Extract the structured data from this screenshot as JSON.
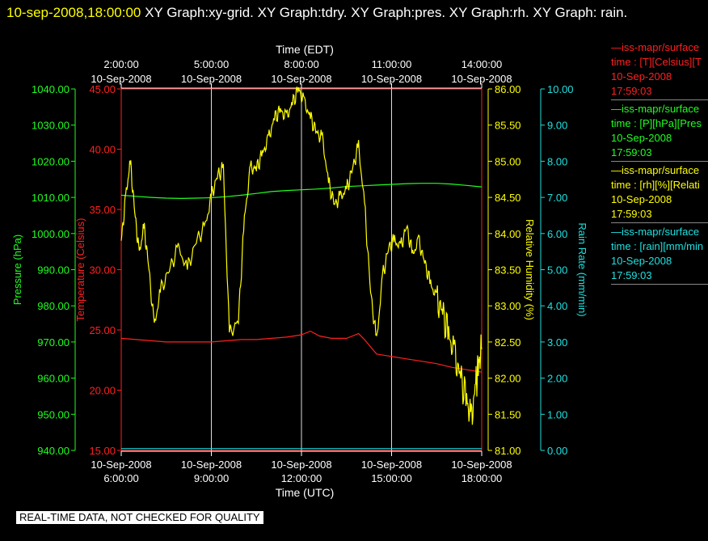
{
  "header": {
    "timestamp": "10-sep-2008,18:00:00",
    "title": "XY Graph:xy-grid.  XY Graph:tdry.  XY Graph:pres.  XY Graph:rh.  XY Graph: rain."
  },
  "legend": [
    {
      "name": "—iss-mapr/surface",
      "line2": "time : [T][Celsius][T",
      "date": "10-Sep-2008",
      "time": "17:59:03",
      "color": "#ff2020"
    },
    {
      "name": "—iss-mapr/surface",
      "line2": "time : [P][hPa][Pres",
      "date": "10-Sep-2008",
      "time": "17:59:03",
      "color": "#20ff20"
    },
    {
      "name": "—iss-mapr/surface",
      "line2": "time : [rh][%][Relati",
      "date": "10-Sep-2008",
      "time": "17:59:03",
      "color": "#ffff00"
    },
    {
      "name": "—iss-mapr/surface",
      "line2": "time : [rain][mm/min",
      "date": "10-Sep-2008",
      "time": "17:59:03",
      "color": "#20e0e0"
    }
  ],
  "notice": "REAL-TIME DATA, NOT CHECKED FOR QUALITY",
  "chart_data": {
    "type": "line",
    "top_axis": {
      "label": "Time (EDT)",
      "ticks": [
        {
          "t": 2,
          "time": "2:00:00",
          "date": "10-Sep-2008"
        },
        {
          "t": 5,
          "time": "5:00:00",
          "date": "10-Sep-2008"
        },
        {
          "t": 8,
          "time": "8:00:00",
          "date": "10-Sep-2008"
        },
        {
          "t": 11,
          "time": "11:00:00",
          "date": "10-Sep-2008"
        },
        {
          "t": 14,
          "time": "14:00:00",
          "date": "10-Sep-2008"
        }
      ]
    },
    "bottom_axis": {
      "label": "Time (UTC)",
      "range": [
        "2008-09-10 06:00:00",
        "2008-09-10 18:00:00"
      ],
      "ticks": [
        {
          "t": 6,
          "time": "6:00:00",
          "date": "10-Sep-2008"
        },
        {
          "t": 9,
          "time": "9:00:00",
          "date": "10-Sep-2008"
        },
        {
          "t": 12,
          "time": "12:00:00",
          "date": "10-Sep-2008"
        },
        {
          "t": 15,
          "time": "15:00:00",
          "date": "10-Sep-2008"
        },
        {
          "t": 18,
          "time": "18:00:00",
          "date": "10-Sep-2008"
        }
      ]
    },
    "y_axes": [
      {
        "id": "pres",
        "label": "Pressure (hPa)",
        "color": "#20ff20",
        "min": 940,
        "max": 1040,
        "step": 10,
        "decimals": 2
      },
      {
        "id": "tdry",
        "label": "Temperature (Celsius)",
        "color": "#ff2020",
        "min": 15,
        "max": 45,
        "step": 5,
        "decimals": 2
      },
      {
        "id": "rh",
        "label": "Relative Humidity (%)",
        "color": "#ffff00",
        "min": 81,
        "max": 86,
        "step": 0.5,
        "decimals": 2
      },
      {
        "id": "rain",
        "label": "Rain Rate (mm/min)",
        "color": "#20e0e0",
        "min": 0,
        "max": 10,
        "step": 1,
        "decimals": 2
      }
    ],
    "vertical_grid_hours_utc": [
      9,
      12,
      15
    ],
    "series": [
      {
        "axis": "pres",
        "color": "#20ff20",
        "x": [
          6.0,
          6.5,
          7.0,
          7.5,
          8.0,
          8.5,
          9.0,
          9.5,
          10.0,
          10.5,
          11.0,
          11.5,
          12.0,
          12.5,
          13.0,
          13.5,
          14.0,
          14.5,
          15.0,
          15.5,
          16.0,
          16.5,
          17.0,
          17.5,
          18.0
        ],
        "y": [
          1010.6,
          1010.3,
          1010.0,
          1009.8,
          1009.7,
          1009.8,
          1009.9,
          1010.2,
          1010.6,
          1011.1,
          1011.6,
          1011.9,
          1012.1,
          1012.3,
          1012.6,
          1013.0,
          1013.2,
          1013.4,
          1013.6,
          1013.8,
          1013.9,
          1013.9,
          1013.7,
          1013.3,
          1012.9
        ]
      },
      {
        "axis": "tdry",
        "color": "#ff2020",
        "x": [
          6.0,
          6.5,
          7.0,
          7.5,
          8.0,
          8.5,
          9.0,
          9.5,
          10.0,
          10.5,
          11.0,
          11.5,
          12.0,
          12.3,
          12.6,
          13.0,
          13.5,
          13.9,
          14.1,
          14.5,
          15.0,
          15.5,
          16.0,
          16.5,
          17.0,
          17.5,
          18.0
        ],
        "y": [
          24.3,
          24.2,
          24.1,
          24.0,
          24.0,
          24.0,
          24.0,
          24.1,
          24.2,
          24.2,
          24.3,
          24.4,
          24.6,
          24.9,
          24.5,
          24.3,
          24.3,
          24.7,
          24.2,
          23.0,
          22.8,
          22.6,
          22.4,
          22.2,
          21.9,
          21.7,
          21.5
        ]
      },
      {
        "axis": "rh",
        "color": "#ffff00",
        "x": [
          6.0,
          6.15,
          6.3,
          6.45,
          6.6,
          6.75,
          6.9,
          7.1,
          7.3,
          7.6,
          7.9,
          8.2,
          8.5,
          8.8,
          9.0,
          9.2,
          9.4,
          9.6,
          9.9,
          10.1,
          10.3,
          10.5,
          10.7,
          10.9,
          11.1,
          11.3,
          11.5,
          11.7,
          11.9,
          12.1,
          12.3,
          12.5,
          12.7,
          12.9,
          13.1,
          13.3,
          13.5,
          13.7,
          13.9,
          14.1,
          14.3,
          14.5,
          14.7,
          14.9,
          15.1,
          15.3,
          15.5,
          15.7,
          15.9,
          16.1,
          16.3,
          16.5,
          16.7,
          16.9,
          17.1,
          17.3,
          17.5,
          17.65,
          17.8,
          17.9,
          18.0
        ],
        "y": [
          83.9,
          84.5,
          85.0,
          84.3,
          83.7,
          84.1,
          83.6,
          82.7,
          83.2,
          83.5,
          83.8,
          83.5,
          83.9,
          84.1,
          84.5,
          84.8,
          84.9,
          82.6,
          82.8,
          84.2,
          84.9,
          84.9,
          85.1,
          85.3,
          85.6,
          85.7,
          85.6,
          85.8,
          86.0,
          85.8,
          85.6,
          85.4,
          85.3,
          84.7,
          84.4,
          84.5,
          84.6,
          84.9,
          85.2,
          84.4,
          83.2,
          82.5,
          83.4,
          83.8,
          83.9,
          83.8,
          84.1,
          83.7,
          83.9,
          83.6,
          83.3,
          83.1,
          82.9,
          82.6,
          82.3,
          82.0,
          81.7,
          81.4,
          81.9,
          82.2,
          82.4
        ]
      },
      {
        "axis": "rain",
        "color": "#20e0e0",
        "x": [
          6.0,
          18.0
        ],
        "y": [
          0.05,
          0.05
        ]
      }
    ]
  }
}
